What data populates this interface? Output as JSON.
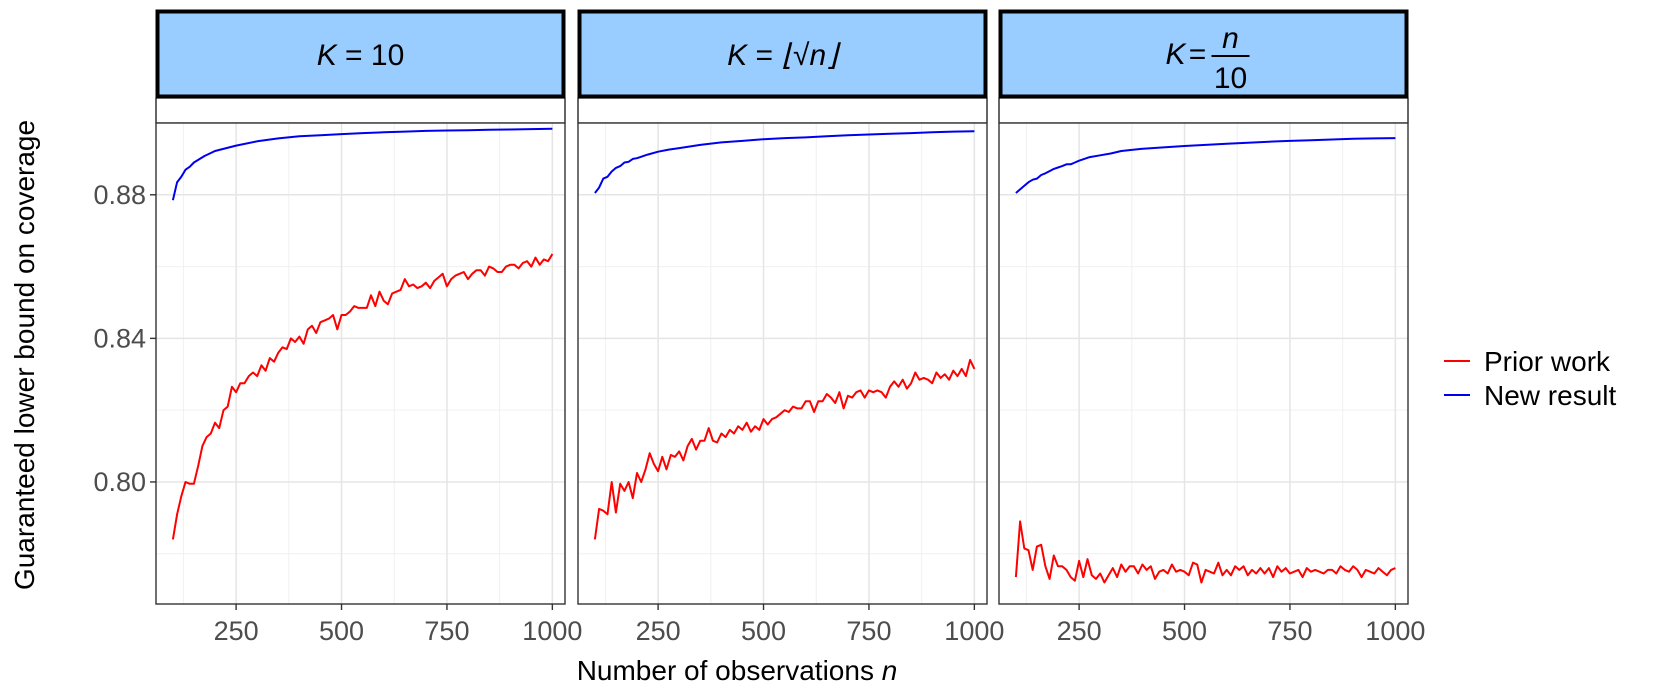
{
  "chart_data": {
    "type": "line",
    "ylabel": "Guaranteed lower bound on coverage",
    "xlabel": "Number of observations",
    "xlabel_var": "n",
    "x_ticks": [
      250,
      500,
      750,
      1000
    ],
    "y_ticks": [
      0.8,
      0.84,
      0.88
    ],
    "y_tick_labels": [
      "0.80",
      "0.84",
      "0.88"
    ],
    "x_tick_labels": [
      "250",
      "500",
      "750",
      "1000"
    ],
    "xlim": [
      60,
      1030
    ],
    "ylim": [
      0.766,
      0.9
    ],
    "legend": {
      "placement": "right",
      "entries": [
        "Prior work",
        "New result"
      ]
    },
    "colors": {
      "Prior work": "#ff0000",
      "New result": "#0000ee",
      "strip_fill": "#99ccff"
    },
    "panels": [
      {
        "label": "K = 10",
        "label_parts": {
          "lhs": "K",
          "rhs": "10"
        },
        "series": [
          {
            "name": "Prior work",
            "x": [
              100,
              110,
              120,
              130,
              140,
              150,
              160,
              170,
              180,
              190,
              200,
              210,
              220,
              230,
              240,
              250,
              260,
              270,
              280,
              290,
              300,
              310,
              320,
              330,
              340,
              350,
              360,
              370,
              380,
              390,
              400,
              410,
              420,
              430,
              440,
              450,
              460,
              470,
              480,
              490,
              500,
              510,
              520,
              530,
              540,
              550,
              560,
              570,
              580,
              590,
              600,
              610,
              620,
              630,
              640,
              650,
              660,
              670,
              680,
              690,
              700,
              710,
              720,
              730,
              740,
              750,
              760,
              770,
              780,
              790,
              800,
              810,
              820,
              830,
              840,
              850,
              860,
              870,
              880,
              890,
              900,
              910,
              920,
              930,
              940,
              950,
              960,
              970,
              980,
              990,
              1000
            ],
            "y": [
              0.784,
              0.791,
              0.796,
              0.8,
              0.7995,
              0.7995,
              0.8045,
              0.81,
              0.8125,
              0.8135,
              0.8165,
              0.815,
              0.82,
              0.821,
              0.8265,
              0.825,
              0.8275,
              0.8275,
              0.8295,
              0.8305,
              0.8295,
              0.8325,
              0.831,
              0.8345,
              0.8335,
              0.836,
              0.8375,
              0.837,
              0.84,
              0.839,
              0.8405,
              0.8385,
              0.8425,
              0.8435,
              0.8415,
              0.8445,
              0.845,
              0.8455,
              0.8465,
              0.8425,
              0.8465,
              0.8465,
              0.8475,
              0.849,
              0.8485,
              0.8485,
              0.8485,
              0.852,
              0.849,
              0.853,
              0.8505,
              0.8495,
              0.8525,
              0.853,
              0.8535,
              0.8565,
              0.8545,
              0.855,
              0.854,
              0.8545,
              0.8555,
              0.854,
              0.856,
              0.857,
              0.858,
              0.8545,
              0.8565,
              0.8575,
              0.858,
              0.8585,
              0.8565,
              0.858,
              0.859,
              0.859,
              0.8575,
              0.86,
              0.8595,
              0.8585,
              0.8585,
              0.86,
              0.8605,
              0.8605,
              0.8595,
              0.861,
              0.8615,
              0.86,
              0.8625,
              0.8605,
              0.862,
              0.8615,
              0.8635
            ]
          },
          {
            "name": "New result",
            "x": [
              100,
              110,
              120,
              130,
              140,
              150,
              175,
              200,
              250,
              300,
              350,
              400,
              450,
              500,
              550,
              600,
              650,
              700,
              750,
              800,
              850,
              900,
              950,
              1000
            ],
            "y": [
              0.8785,
              0.8835,
              0.885,
              0.887,
              0.8878,
              0.889,
              0.8908,
              0.8922,
              0.8937,
              0.8949,
              0.8957,
              0.8963,
              0.8966,
              0.8969,
              0.8972,
              0.8974,
              0.8976,
              0.8978,
              0.8979,
              0.898,
              0.8981,
              0.8982,
              0.8983,
              0.8984
            ]
          }
        ]
      },
      {
        "label": "K = ⌊√n⌋",
        "label_parts": {
          "lhs": "K",
          "rhs": "⌊√n⌋"
        },
        "series": [
          {
            "name": "Prior work",
            "x": [
              100,
              110,
              120,
              130,
              140,
              150,
              160,
              170,
              180,
              190,
              200,
              210,
              220,
              230,
              240,
              250,
              260,
              270,
              280,
              290,
              300,
              310,
              320,
              330,
              340,
              350,
              360,
              370,
              380,
              390,
              400,
              410,
              420,
              430,
              440,
              450,
              460,
              470,
              480,
              490,
              500,
              510,
              520,
              530,
              540,
              550,
              560,
              570,
              580,
              590,
              600,
              610,
              620,
              630,
              640,
              650,
              660,
              670,
              680,
              690,
              700,
              710,
              720,
              730,
              740,
              750,
              760,
              770,
              780,
              790,
              800,
              810,
              820,
              830,
              840,
              850,
              860,
              870,
              880,
              890,
              900,
              910,
              920,
              930,
              940,
              950,
              960,
              970,
              980,
              990,
              1000
            ],
            "y": [
              0.784,
              0.7925,
              0.792,
              0.791,
              0.8,
              0.7915,
              0.7995,
              0.7975,
              0.8,
              0.7955,
              0.8025,
              0.8,
              0.8035,
              0.808,
              0.805,
              0.803,
              0.807,
              0.8035,
              0.8075,
              0.807,
              0.8085,
              0.806,
              0.81,
              0.812,
              0.809,
              0.8115,
              0.8115,
              0.815,
              0.8115,
              0.811,
              0.8135,
              0.8125,
              0.8145,
              0.8135,
              0.8155,
              0.8145,
              0.8165,
              0.814,
              0.8155,
              0.8145,
              0.8175,
              0.816,
              0.8175,
              0.818,
              0.819,
              0.82,
              0.8195,
              0.821,
              0.8205,
              0.8205,
              0.8225,
              0.8225,
              0.8195,
              0.8225,
              0.8225,
              0.8245,
              0.8235,
              0.822,
              0.825,
              0.8205,
              0.824,
              0.8235,
              0.825,
              0.8255,
              0.8235,
              0.8255,
              0.825,
              0.8255,
              0.825,
              0.8235,
              0.8265,
              0.828,
              0.8265,
              0.8285,
              0.826,
              0.8275,
              0.8305,
              0.8285,
              0.829,
              0.8285,
              0.8275,
              0.8305,
              0.829,
              0.83,
              0.8285,
              0.831,
              0.8295,
              0.8315,
              0.8295,
              0.834,
              0.8315
            ]
          },
          {
            "name": "New result",
            "x": [
              100,
              110,
              120,
              130,
              140,
              150,
              160,
              170,
              180,
              190,
              200,
              225,
              250,
              275,
              300,
              350,
              400,
              450,
              500,
              550,
              600,
              650,
              700,
              750,
              800,
              850,
              900,
              950,
              1000
            ],
            "y": [
              0.8805,
              0.882,
              0.8845,
              0.885,
              0.8865,
              0.8875,
              0.888,
              0.889,
              0.8892,
              0.89,
              0.8902,
              0.8912,
              0.892,
              0.8926,
              0.893,
              0.8939,
              0.8946,
              0.895,
              0.8955,
              0.8958,
              0.896,
              0.8963,
              0.8966,
              0.8968,
              0.897,
              0.8972,
              0.8974,
              0.8976,
              0.8977
            ]
          }
        ]
      },
      {
        "label": "K = n/10",
        "label_parts": {
          "lhs": "K",
          "num": "n",
          "den": "10"
        },
        "series": [
          {
            "name": "Prior work",
            "x": [
              100,
              110,
              120,
              130,
              140,
              150,
              160,
              170,
              180,
              190,
              200,
              210,
              220,
              230,
              240,
              250,
              260,
              270,
              280,
              290,
              300,
              310,
              320,
              330,
              340,
              350,
              360,
              370,
              380,
              390,
              400,
              410,
              420,
              430,
              440,
              450,
              460,
              470,
              480,
              490,
              500,
              510,
              520,
              530,
              540,
              550,
              560,
              570,
              580,
              590,
              600,
              610,
              620,
              630,
              640,
              650,
              660,
              670,
              680,
              690,
              700,
              710,
              720,
              730,
              740,
              750,
              760,
              770,
              780,
              790,
              800,
              810,
              820,
              830,
              840,
              850,
              860,
              870,
              880,
              890,
              900,
              910,
              920,
              930,
              940,
              950,
              960,
              970,
              980,
              990,
              1000
            ],
            "y": [
              0.7735,
              0.789,
              0.7815,
              0.781,
              0.7755,
              0.782,
              0.7825,
              0.7765,
              0.773,
              0.7795,
              0.7765,
              0.7765,
              0.7755,
              0.7735,
              0.7725,
              0.778,
              0.7735,
              0.7785,
              0.774,
              0.773,
              0.7745,
              0.772,
              0.774,
              0.776,
              0.7735,
              0.777,
              0.775,
              0.7765,
              0.7765,
              0.7745,
              0.777,
              0.7755,
              0.7765,
              0.773,
              0.775,
              0.7755,
              0.7745,
              0.777,
              0.775,
              0.7755,
              0.775,
              0.774,
              0.7775,
              0.777,
              0.772,
              0.7755,
              0.775,
              0.7745,
              0.7775,
              0.774,
              0.7755,
              0.774,
              0.7765,
              0.7755,
              0.7765,
              0.774,
              0.7755,
              0.7745,
              0.776,
              0.7745,
              0.776,
              0.7735,
              0.7765,
              0.775,
              0.776,
              0.7745,
              0.775,
              0.7755,
              0.7735,
              0.776,
              0.775,
              0.7755,
              0.775,
              0.7745,
              0.7755,
              0.7755,
              0.7745,
              0.7765,
              0.7755,
              0.775,
              0.7765,
              0.7755,
              0.7735,
              0.7755,
              0.775,
              0.7745,
              0.776,
              0.775,
              0.774,
              0.7755,
              0.776
            ]
          },
          {
            "name": "New result",
            "x": [
              100,
              110,
              120,
              130,
              140,
              150,
              160,
              170,
              180,
              190,
              200,
              210,
              220,
              230,
              240,
              250,
              275,
              300,
              325,
              350,
              375,
              400,
              450,
              500,
              550,
              600,
              650,
              700,
              750,
              800,
              850,
              900,
              950,
              1000
            ],
            "y": [
              0.8805,
              0.8815,
              0.8825,
              0.8835,
              0.8842,
              0.8845,
              0.8855,
              0.886,
              0.8866,
              0.8872,
              0.8876,
              0.888,
              0.8885,
              0.8885,
              0.889,
              0.8895,
              0.8905,
              0.891,
              0.8915,
              0.8922,
              0.8925,
              0.8928,
              0.8932,
              0.8936,
              0.8939,
              0.8942,
              0.8945,
              0.8948,
              0.895,
              0.8952,
              0.8954,
              0.8956,
              0.8957,
              0.8958
            ]
          }
        ]
      }
    ]
  }
}
